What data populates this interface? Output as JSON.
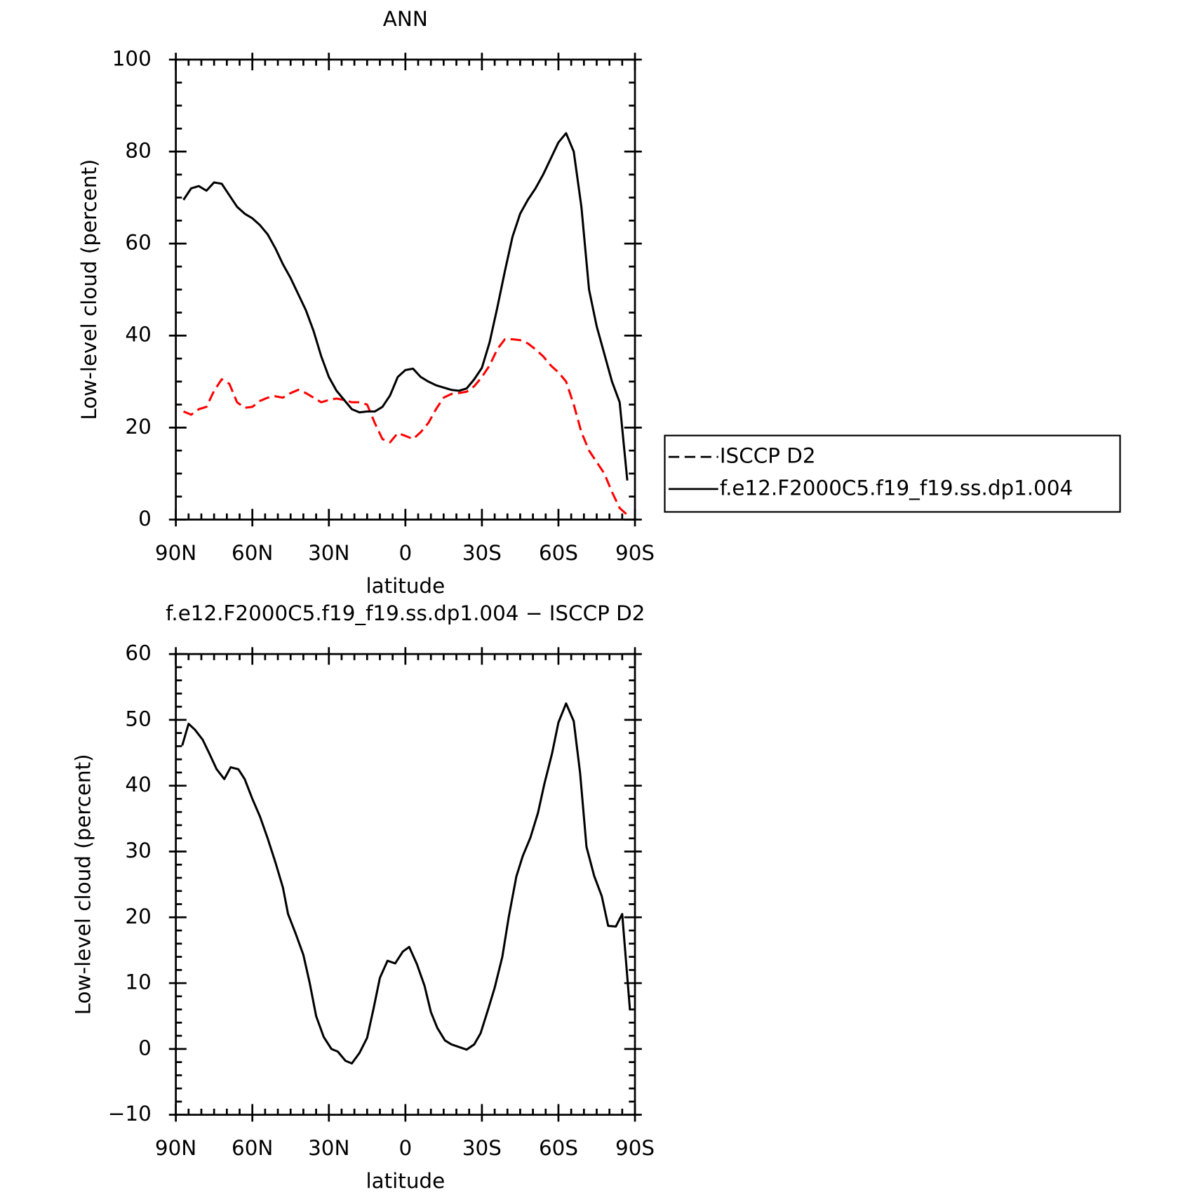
{
  "chart_data": [
    {
      "type": "line",
      "title": "ANN",
      "xlabel": "latitude",
      "ylabel": "Low-level cloud (percent)",
      "x": [
        87,
        84,
        81,
        78,
        75,
        72,
        69,
        66,
        63,
        60,
        57,
        54,
        51,
        48,
        45,
        42,
        39,
        36,
        33,
        30,
        27,
        24,
        21,
        18,
        15,
        12,
        9,
        6,
        3,
        0,
        -3,
        -6,
        -9,
        -12,
        -15,
        -18,
        -21,
        -24,
        -27,
        -30,
        -33,
        -36,
        -39,
        -42,
        -45,
        -48,
        -51,
        -54,
        -57,
        -60,
        -63,
        -66,
        -69,
        -72,
        -75,
        -78,
        -81,
        -84,
        -87
      ],
      "series": [
        {
          "name": "ISCCP D2",
          "color": "#ff0000",
          "style": "dashed",
          "values": [
            23.5,
            22.8,
            24,
            24.5,
            28,
            30.5,
            29.5,
            25.5,
            24.3,
            24.5,
            25.8,
            26.5,
            26.8,
            26.5,
            27.5,
            28.2,
            27.5,
            26.5,
            25.5,
            26,
            26.3,
            26,
            25.5,
            25.5,
            25,
            21,
            17.5,
            16.8,
            18.8,
            18.2,
            17.5,
            19,
            21,
            24,
            26.5,
            27.3,
            27.5,
            27.8,
            29,
            31,
            33.5,
            37,
            39.2,
            39.2,
            39,
            38.3,
            37,
            35.5,
            33.5,
            32,
            30,
            25,
            19,
            15,
            12.5,
            10,
            6,
            2.5,
            1
          ]
        },
        {
          "name": "f.e12.F2000C5.f19_f19.ss.dp1.004",
          "color": "#000000",
          "style": "solid",
          "values": [
            69.5,
            72,
            72.5,
            71.5,
            73.3,
            73,
            70.5,
            68,
            66.5,
            65.5,
            64,
            62,
            59,
            55.5,
            52.5,
            49,
            45.5,
            41,
            35.5,
            31,
            28,
            26,
            24,
            23.3,
            23.5,
            23.5,
            24.5,
            27,
            31,
            32.5,
            32.8,
            31,
            30,
            29.2,
            28.7,
            28.2,
            28,
            28.5,
            30.5,
            33,
            38.5,
            46,
            54,
            61.5,
            66.5,
            69.5,
            72,
            75,
            78.5,
            82,
            84,
            80,
            68,
            50,
            42,
            36,
            30,
            25.5,
            8.5
          ]
        }
      ],
      "xlim": [
        90,
        -90
      ],
      "xticks": [
        {
          "value": 90,
          "label": "90N"
        },
        {
          "value": 60,
          "label": "60N"
        },
        {
          "value": 30,
          "label": "30N"
        },
        0,
        {
          "value": -30,
          "label": "30S"
        },
        {
          "value": -60,
          "label": "60S"
        },
        {
          "value": -90,
          "label": "90S"
        }
      ],
      "ylim": [
        0,
        100
      ],
      "yticks": [
        0,
        20,
        40,
        60,
        80,
        100
      ],
      "legend": "right"
    },
    {
      "type": "line",
      "title": "f.e12.F2000C5.f19_f19.ss.dp1.004 − ISCCP D2",
      "xlabel": "latitude",
      "ylabel": "Low-level cloud (percent)",
      "x": [
        87.5,
        85,
        82.5,
        79.5,
        77,
        74,
        71,
        68.5,
        65.5,
        63,
        60,
        57,
        54,
        51,
        48,
        46,
        43,
        40,
        37.5,
        35,
        32,
        29,
        26.5,
        23.5,
        21,
        18,
        15,
        12.5,
        10,
        7,
        4,
        1,
        -1.5,
        -4.5,
        -7.5,
        -10,
        -12.5,
        -15.5,
        -18,
        -21,
        -24,
        -27,
        -29.5,
        -32.5,
        -35,
        -38,
        -40.5,
        -43.5,
        -46,
        -49,
        -52,
        -54.5,
        -57.5,
        -60,
        -63,
        -66,
        -68.5,
        -71,
        -74,
        -77,
        -79.5,
        -82.5,
        -85,
        -88
      ],
      "series": [
        {
          "color": "#000000",
          "style": "solid",
          "values": [
            46.1,
            49.4,
            48.5,
            47,
            45,
            42.5,
            41,
            42.8,
            42.5,
            41,
            38,
            35.3,
            32,
            28.4,
            24.5,
            20.5,
            17.5,
            14.3,
            10,
            5,
            1.8,
            0,
            -0.4,
            -1.8,
            -2.2,
            -0.6,
            1.7,
            6.1,
            10.8,
            13.4,
            13,
            14.8,
            15.5,
            12.9,
            9.6,
            5.6,
            3.2,
            1.3,
            0.7,
            0.3,
            -0.1,
            0.7,
            2.4,
            6.1,
            9.3,
            14,
            20,
            26.2,
            29.3,
            32.1,
            35.9,
            40.3,
            44.9,
            49.6,
            52.5,
            49.8,
            41.9,
            30.7,
            26.3,
            23.2,
            18.7,
            18.6,
            20.5,
            6.1
          ]
        }
      ],
      "xlim": [
        90,
        -90
      ],
      "xticks": [
        {
          "value": 90,
          "label": "90N"
        },
        {
          "value": 60,
          "label": "60N"
        },
        {
          "value": 30,
          "label": "30N"
        },
        0,
        {
          "value": -30,
          "label": "30S"
        },
        {
          "value": -60,
          "label": "60S"
        },
        {
          "value": -90,
          "label": "90S"
        }
      ],
      "ylim": [
        -10,
        60
      ],
      "yticks": [
        {
          "value": -10,
          "label": "−10"
        },
        0,
        10,
        20,
        30,
        40,
        50,
        60
      ]
    }
  ]
}
